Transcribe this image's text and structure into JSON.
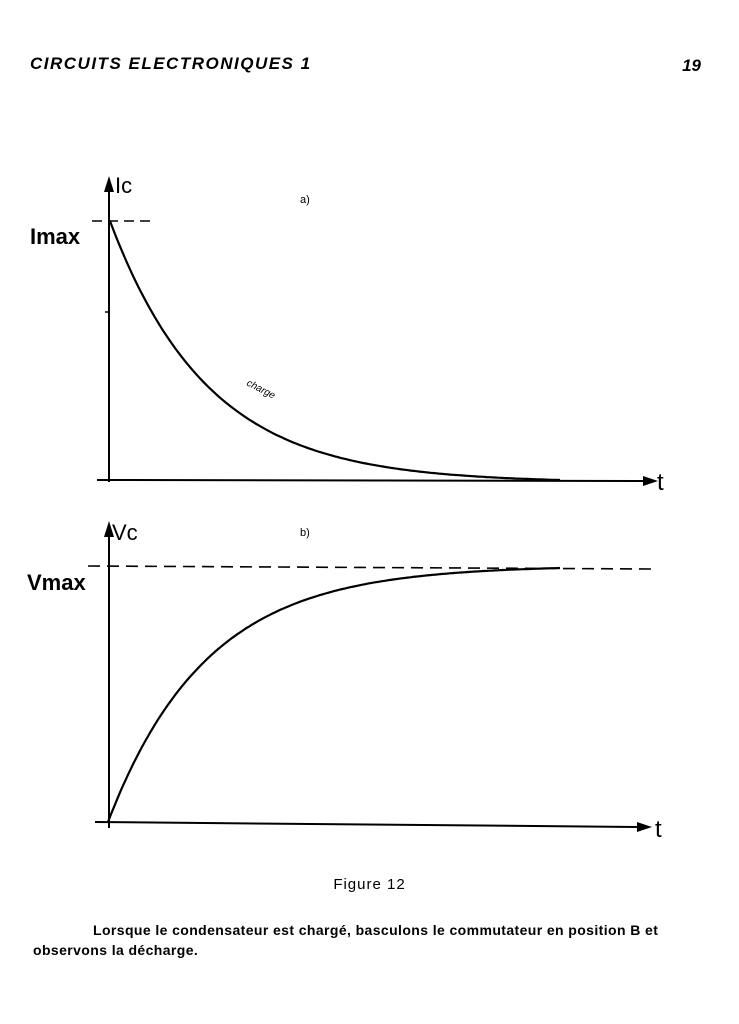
{
  "header": {
    "title": "CIRCUITS ELECTRONIQUES 1",
    "page_number": "19"
  },
  "figure": {
    "caption": "Figure 12",
    "panel_a": {
      "tag": "a)",
      "y_axis_label": "Ic",
      "x_axis_label": "t",
      "level_label": "Imax",
      "curve_label": "charge"
    },
    "panel_b": {
      "tag": "b)",
      "y_axis_label": "Vc",
      "x_axis_label": "t",
      "level_label": "Vmax"
    }
  },
  "body_text": "Lorsque le condensateur est chargé, basculons le commutateur en position B et observons la décharge."
}
